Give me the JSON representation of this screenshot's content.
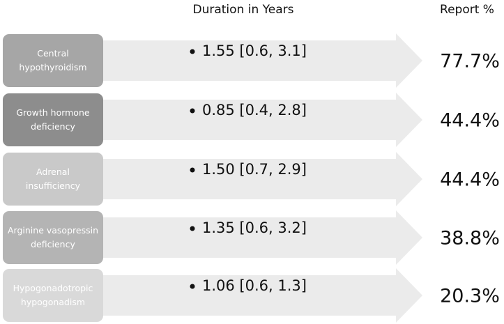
{
  "header": {
    "duration": "Duration in Years",
    "report": "Report %"
  },
  "rows": [
    {
      "label": "Central hypothyroidism",
      "duration": "1.55 [0.6, 3.1]",
      "report": "77.7%",
      "color": "#a6a6a6"
    },
    {
      "label": "Growth hormone deficiency",
      "duration": "0.85 [0.4, 2.8]",
      "report": "44.4%",
      "color": "#8d8d8d"
    },
    {
      "label": "Adrenal insufficiency",
      "duration": "1.50 [0.7, 2.9]",
      "report": "44.4%",
      "color": "#c9c9c9"
    },
    {
      "label": "Arginine vasopressin deficiency",
      "duration": "1.35 [0.6, 3.2]",
      "report": "38.8%",
      "color": "#b4b4b4"
    },
    {
      "label": "Hypogonadotropic hypogonadism",
      "duration": "1.06 [0.6, 1.3]",
      "report": "20.3%",
      "color": "#d9d9d9"
    }
  ]
}
